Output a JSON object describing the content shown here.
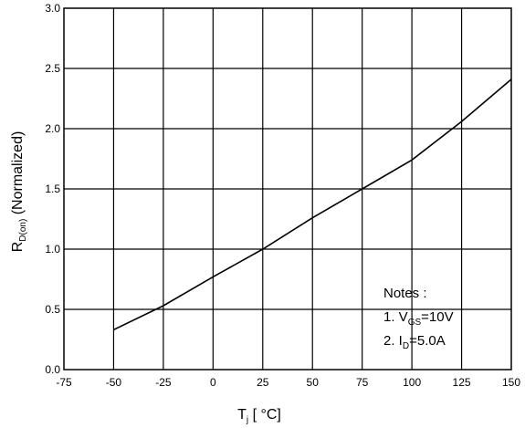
{
  "chart_data": {
    "type": "line",
    "xlim": [
      -75,
      150
    ],
    "ylim": [
      0.0,
      3.0
    ],
    "x_ticks": [
      "-75",
      "-50",
      "-25",
      "0",
      "25",
      "50",
      "75",
      "100",
      "125",
      "150"
    ],
    "y_ticks": [
      "0.0",
      "0.5",
      "1.0",
      "1.5",
      "2.0",
      "2.5",
      "3.0"
    ],
    "grid": true,
    "xlabel": {
      "main": "T",
      "sub": "j",
      "rest": " [     °C]"
    },
    "ylabel": {
      "main": "R",
      "sub": "D(on)",
      "rest": " (Normalized)"
    },
    "series": [
      {
        "x": [
          -50,
          -25,
          0,
          25,
          50,
          75,
          100,
          125,
          150
        ],
        "y": [
          0.33,
          0.53,
          0.77,
          1.0,
          1.26,
          1.5,
          1.74,
          2.06,
          2.41
        ]
      }
    ],
    "notes": {
      "title": "Notes   :",
      "line1": {
        "prefix": "1. V",
        "sub": "GS",
        "suffix": "=10V"
      },
      "line2": {
        "prefix": "2. I",
        "sub": "D",
        "suffix": "=5.0A"
      }
    }
  }
}
